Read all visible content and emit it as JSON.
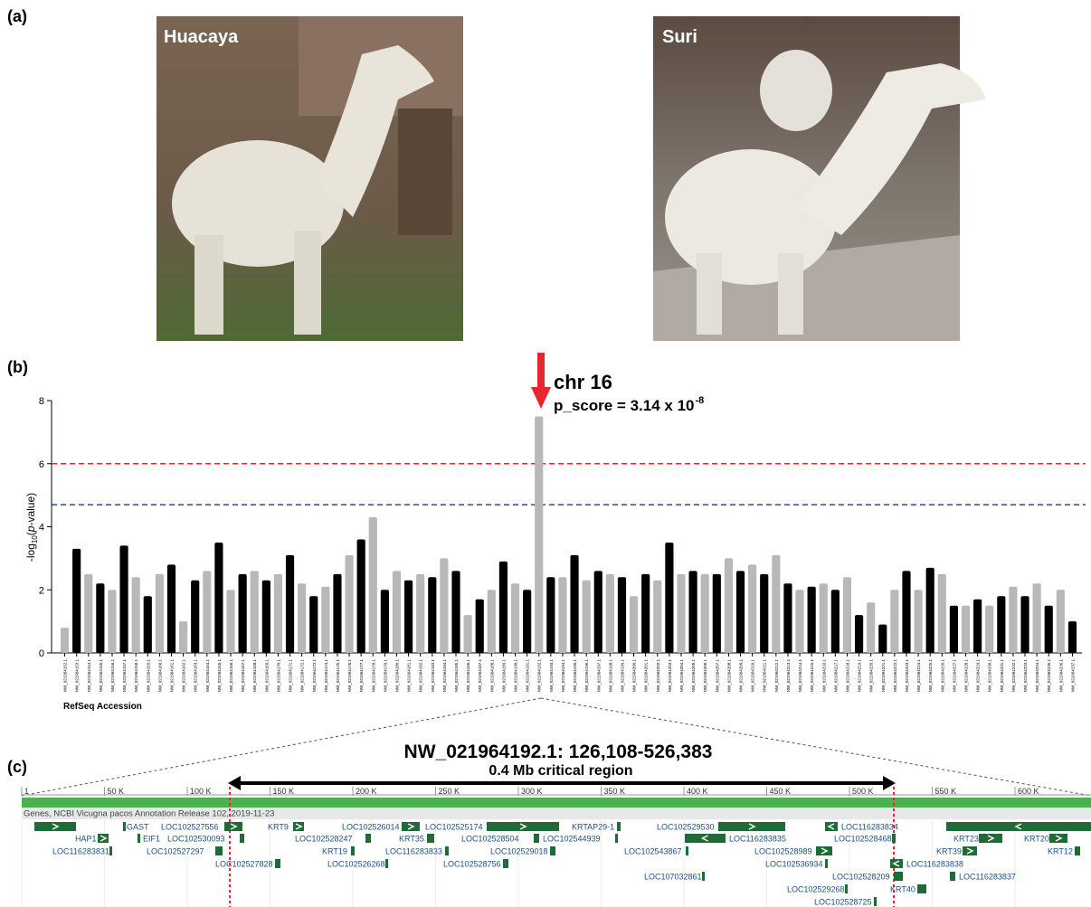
{
  "panel_labels": [
    "(a)",
    "(b)",
    "(c)"
  ],
  "photos": [
    {
      "label": "Huacaya"
    },
    {
      "label": "Suri"
    }
  ],
  "chart_data": {
    "type": "manhattan",
    "arrow_label": "chr 16",
    "p_score": "p_score = 3.14 x 10",
    "p_score_exponent": "-8",
    "y_label": [
      "-log",
      "10",
      "(",
      "p",
      "-value)"
    ],
    "x_label": "RefSeq Accession",
    "ylim": [
      0,
      8
    ],
    "yticks": [
      0,
      2,
      4,
      6,
      8
    ],
    "colors": [
      "#b8b8b8",
      "#000000"
    ],
    "thresholds": [
      {
        "value": 6,
        "color": "#e8262b"
      },
      {
        "value": 4.7,
        "color": "#2a4d9e"
      }
    ],
    "categories": [
      "NW_021964152.1",
      "NW_021964153.1",
      "NW_021964154.1",
      "NW_021964155.1",
      "NW_021964156.1",
      "NW_021964157.1",
      "NW_021964158.1",
      "NW_021964159.1",
      "NW_021964160.1",
      "NW_021964161.1",
      "NW_021964162.1",
      "NW_021964163.1",
      "NW_021964164.1",
      "NW_021964165.1",
      "NW_021964166.1",
      "NW_021964167.1",
      "NW_021964168.1",
      "NW_021964169.1",
      "NW_021964170.1",
      "NW_021964171.1",
      "NW_021964172.1",
      "NW_021964173.1",
      "NW_021964174.1",
      "NW_021964175.1",
      "NW_021964176.1",
      "NW_021964177.1",
      "NW_021964178.1",
      "NW_021964179.1",
      "NW_021964180.1",
      "NW_021964181.1",
      "NW_021964182.1",
      "NW_021964183.1",
      "NW_021964184.1",
      "NW_021964185.1",
      "NW_021964186.1",
      "NW_021964187.1",
      "NW_021964188.1",
      "NW_021964189.1",
      "NW_021964190.1",
      "NW_021964191.1",
      "NW_021964192.1",
      "NW_021964193.1",
      "NW_021964194.1",
      "NW_021964195.1",
      "NW_021964196.1",
      "NW_021964197.1",
      "NW_021964198.1",
      "NW_021964199.1",
      "NW_021964200.1",
      "NW_021964201.1",
      "NW_021964202.1",
      "NW_021964203.1",
      "NW_021964204.1",
      "NW_021964205.1",
      "NW_021964206.1",
      "NW_021964207.1",
      "NW_021964208.1",
      "NW_021964209.1",
      "NW_021964210.1",
      "NW_021964211.1",
      "NW_021964212.1",
      "NW_021964213.1",
      "NW_021964214.1",
      "NW_021964215.1",
      "NW_021964216.1",
      "NW_021964217.1",
      "NW_021964218.1",
      "NW_021964219.1",
      "NW_021964220.1",
      "NW_021964221.1",
      "NW_021964222.1",
      "NW_021964223.1",
      "NW_021964224.1",
      "NW_021964225.1",
      "NW_021964226.1",
      "NW_021964227.1",
      "NW_021964228.1",
      "NW_021964229.1",
      "NW_021964230.1",
      "NW_021964231.1",
      "NW_021964232.1",
      "NW_021964233.1",
      "NW_021964234.1",
      "NW_021964235.1",
      "NW_021964236.1",
      "NW_021964237.1"
    ],
    "values": [
      0.8,
      3.3,
      2.5,
      2.2,
      2.0,
      3.4,
      2.4,
      1.8,
      2.5,
      2.8,
      1.0,
      2.3,
      2.6,
      3.5,
      2.0,
      2.5,
      2.6,
      2.3,
      2.5,
      3.1,
      2.2,
      1.8,
      2.1,
      2.5,
      3.1,
      3.6,
      4.3,
      2.0,
      2.6,
      2.3,
      2.5,
      2.4,
      3.0,
      2.6,
      1.2,
      1.7,
      2.0,
      2.9,
      2.2,
      2.0,
      7.5,
      2.4,
      2.4,
      3.1,
      2.3,
      2.6,
      2.5,
      2.4,
      1.8,
      2.5,
      2.3,
      3.5,
      2.5,
      2.6,
      2.5,
      2.5,
      3.0,
      2.6,
      2.8,
      2.5,
      3.1,
      2.2,
      2.0,
      2.1,
      2.2,
      2.0,
      2.4,
      1.2,
      1.6,
      0.9,
      2.0,
      2.6,
      2.0,
      2.7,
      2.5,
      1.5,
      1.5,
      1.7,
      1.5,
      1.8,
      2.1,
      1.8,
      2.2,
      1.5,
      2.0,
      1.0
    ]
  },
  "browser": {
    "title": "NW_021964192.1: 126,108-526,383",
    "subtitle": "0.4 Mb critical region",
    "ruler_ticks": [
      "1",
      "50 K",
      "100 K",
      "150 K",
      "200 K",
      "250 K",
      "300 K",
      "350 K",
      "400 K",
      "450 K",
      "500 K",
      "550 K",
      "600 K"
    ],
    "track_label": "Genes, NCBI Vicugna pacos Annotation Release 102, 2019-11-23",
    "genes": [
      "GAST",
      "LOC102527556",
      "KRT9",
      "LOC102526014",
      "LOC102525174",
      "KRTAP29-1",
      "LOC102529530",
      "LOC116283834",
      "HAP1",
      "EIF1",
      "LOC102530093",
      "LOC102528247",
      "KRT35",
      "LOC102528504",
      "LOC102544939",
      "LOC116283835",
      "LOC102528468",
      "KRT23",
      "KRT20",
      "LOC116283831",
      "LOC102527297",
      "KRT19",
      "LOC116283833",
      "LOC102529018",
      "LOC102543867",
      "LOC102528989",
      "KRT39",
      "KRT12",
      "LOC102527828",
      "LOC102526268",
      "LOC102528756",
      "LOC102536934",
      "LOC116283838",
      "LOC107032861",
      "LOC102528209",
      "LOC116283837",
      "LOC102529268",
      "KRT40",
      "LOC102528725"
    ]
  }
}
